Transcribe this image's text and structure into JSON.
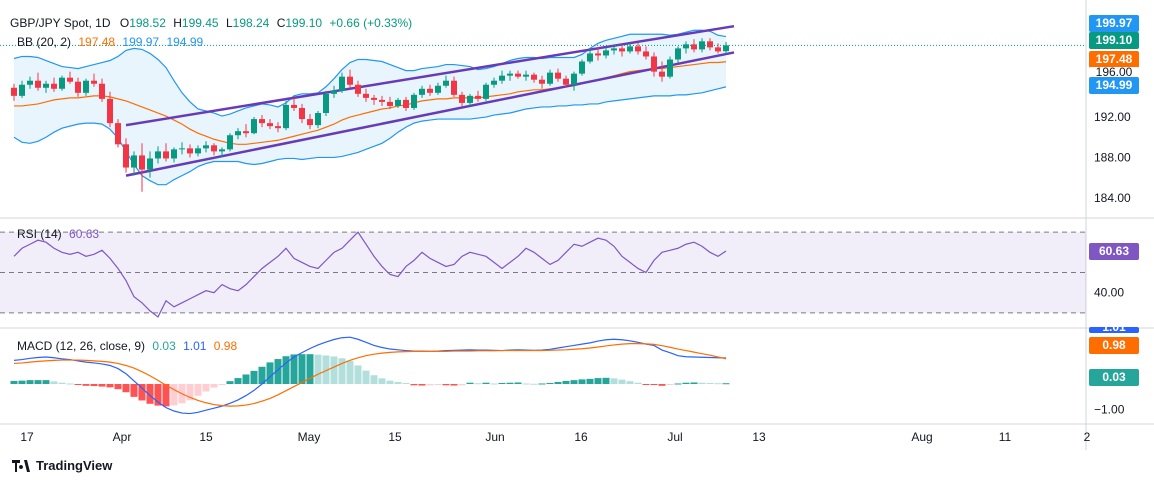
{
  "legend": {
    "symbol": "GBP/JPY Spot, 1D",
    "o_label": "O",
    "o_value": "198.52",
    "h_label": "H",
    "h_value": "199.45",
    "l_label": "L",
    "l_value": "198.24",
    "c_label": "C",
    "c_value": "199.10",
    "change": "+0.66 (+0.33%)",
    "bb_name": "BB (20, 2)",
    "bb_basis": "197.48",
    "bb_upper": "199.97",
    "bb_lower": "194.99",
    "rsi_name": "RSI (14)",
    "rsi_value": "60.63",
    "macd_name": "MACD (12, 26, close, 9)",
    "macd_hist": "0.03",
    "macd_line": "1.01",
    "macd_signal": "0.98"
  },
  "price_tags": {
    "upper": "199.97",
    "close": "199.10",
    "basis": "197.48",
    "partial": "196.00",
    "lower": "194.99",
    "rsi": "60.63",
    "macd_hist": "0.03",
    "macd_signal": "0.98",
    "macd_line": "1.01"
  },
  "colors": {
    "up": "#089981",
    "down": "#f23645",
    "bb_band": "#2196f3",
    "bb_basis": "#ff6d00",
    "bb_fill": "#e3f2fd",
    "channel": "#673ab7",
    "rsi": "#7e57c2",
    "macd_line": "#2962ff",
    "signal": "#ff6d00",
    "close_tag": "#089981"
  },
  "brand": "TradingView",
  "chart_data": [
    {
      "type": "candlestick",
      "title": "GBP/JPY Spot, 1D",
      "y_ticks": [
        184.0,
        188.0,
        192.0,
        196.0
      ],
      "y_tick_labels": [
        "184.00",
        "188.00",
        "192.00",
        "196.00"
      ],
      "ylim": [
        182.3,
        202.8
      ],
      "x_tick_labels": [
        "17",
        "Apr",
        "15",
        "May",
        "15",
        "Jun",
        "16",
        "Jul",
        "13",
        "Aug",
        "11",
        "2"
      ],
      "candles_ohlc": [
        [
          194.9,
          195.3,
          193.6,
          194.1
        ],
        [
          194.1,
          195.6,
          193.9,
          195.2
        ],
        [
          195.2,
          196.0,
          194.8,
          195.6
        ],
        [
          195.6,
          196.4,
          194.6,
          194.9
        ],
        [
          194.9,
          195.6,
          194.4,
          195.3
        ],
        [
          195.3,
          195.9,
          194.5,
          194.8
        ],
        [
          194.8,
          196.1,
          194.6,
          195.9
        ],
        [
          195.9,
          196.5,
          195.3,
          195.5
        ],
        [
          195.5,
          195.9,
          194.0,
          194.4
        ],
        [
          194.4,
          195.8,
          194.1,
          195.6
        ],
        [
          195.6,
          196.3,
          195.0,
          195.3
        ],
        [
          195.3,
          195.8,
          193.5,
          193.8
        ],
        [
          193.8,
          194.5,
          191.0,
          191.4
        ],
        [
          191.4,
          191.8,
          189.0,
          189.3
        ],
        [
          189.3,
          189.9,
          186.5,
          187.0
        ],
        [
          187.0,
          188.6,
          186.2,
          188.2
        ],
        [
          188.2,
          189.4,
          184.6,
          186.8
        ],
        [
          186.8,
          188.6,
          186.0,
          187.9
        ],
        [
          187.9,
          189.1,
          187.4,
          188.6
        ],
        [
          188.6,
          189.4,
          187.6,
          187.9
        ],
        [
          187.9,
          189.0,
          187.5,
          188.8
        ],
        [
          188.8,
          189.5,
          188.3,
          188.9
        ],
        [
          188.9,
          189.3,
          188.0,
          188.4
        ],
        [
          188.4,
          189.2,
          188.1,
          188.9
        ],
        [
          188.9,
          189.6,
          188.5,
          189.2
        ],
        [
          189.2,
          189.4,
          188.2,
          188.6
        ],
        [
          188.6,
          189.0,
          188.0,
          188.8
        ],
        [
          188.8,
          190.4,
          188.6,
          190.2
        ],
        [
          190.2,
          190.9,
          189.8,
          190.6
        ],
        [
          190.6,
          191.3,
          190.0,
          190.4
        ],
        [
          190.4,
          192.0,
          190.3,
          191.8
        ],
        [
          191.8,
          192.2,
          191.0,
          191.4
        ],
        [
          191.4,
          191.8,
          190.8,
          191.1
        ],
        [
          191.1,
          191.5,
          190.5,
          190.9
        ],
        [
          190.9,
          193.6,
          190.7,
          193.2
        ],
        [
          193.2,
          193.9,
          192.6,
          192.9
        ],
        [
          192.9,
          193.3,
          191.4,
          191.8
        ],
        [
          191.8,
          192.3,
          190.8,
          191.2
        ],
        [
          191.2,
          192.6,
          190.9,
          192.4
        ],
        [
          192.4,
          194.6,
          192.1,
          194.3
        ],
        [
          194.3,
          195.1,
          193.9,
          194.6
        ],
        [
          194.6,
          196.4,
          194.4,
          196.0
        ],
        [
          196.0,
          196.7,
          194.8,
          195.2
        ],
        [
          195.2,
          195.6,
          194.0,
          194.3
        ],
        [
          194.3,
          194.8,
          193.5,
          193.9
        ],
        [
          193.9,
          194.2,
          193.2,
          193.7
        ],
        [
          193.7,
          194.1,
          193.1,
          193.5
        ],
        [
          193.5,
          194.0,
          192.8,
          193.1
        ],
        [
          193.1,
          193.9,
          192.9,
          193.7
        ],
        [
          193.7,
          194.0,
          192.6,
          192.9
        ],
        [
          192.9,
          194.4,
          192.7,
          194.2
        ],
        [
          194.2,
          195.1,
          193.9,
          194.8
        ],
        [
          194.8,
          195.2,
          194.1,
          194.4
        ],
        [
          194.4,
          195.4,
          194.2,
          195.1
        ],
        [
          195.1,
          196.1,
          194.9,
          195.6
        ],
        [
          195.6,
          196.0,
          194.0,
          194.2
        ],
        [
          194.2,
          194.5,
          193.0,
          193.4
        ],
        [
          193.4,
          194.3,
          193.1,
          194.1
        ],
        [
          194.1,
          194.6,
          193.5,
          193.8
        ],
        [
          193.8,
          195.4,
          193.6,
          195.2
        ],
        [
          195.2,
          195.9,
          194.9,
          195.6
        ],
        [
          195.6,
          196.6,
          195.3,
          196.1
        ],
        [
          196.1,
          196.6,
          195.6,
          196.3
        ],
        [
          196.3,
          196.6,
          195.8,
          196.0
        ],
        [
          196.0,
          196.6,
          195.6,
          196.2
        ],
        [
          196.2,
          196.4,
          195.4,
          195.7
        ],
        [
          195.7,
          196.1,
          194.8,
          195.3
        ],
        [
          195.3,
          196.7,
          195.1,
          196.4
        ],
        [
          196.4,
          196.8,
          195.5,
          195.8
        ],
        [
          195.8,
          196.1,
          194.9,
          195.2
        ],
        [
          195.2,
          196.5,
          194.6,
          196.3
        ],
        [
          196.3,
          197.7,
          196.1,
          197.5
        ],
        [
          197.5,
          198.8,
          197.3,
          198.3
        ],
        [
          198.3,
          198.9,
          197.6,
          198.1
        ],
        [
          198.1,
          198.9,
          197.8,
          198.6
        ],
        [
          198.6,
          199.0,
          198.2,
          198.8
        ],
        [
          198.8,
          199.2,
          198.0,
          198.5
        ],
        [
          198.5,
          199.3,
          198.3,
          199.0
        ],
        [
          199.0,
          199.4,
          198.2,
          198.5
        ],
        [
          198.5,
          199.0,
          197.7,
          198.0
        ],
        [
          198.0,
          198.4,
          196.0,
          196.5
        ],
        [
          196.5,
          197.5,
          195.5,
          196.0
        ],
        [
          196.0,
          198.0,
          195.8,
          197.7
        ],
        [
          197.7,
          199.0,
          197.4,
          198.8
        ],
        [
          198.8,
          199.5,
          198.3,
          199.2
        ],
        [
          199.2,
          199.7,
          198.4,
          198.7
        ],
        [
          198.7,
          199.8,
          198.4,
          199.5
        ],
        [
          199.5,
          199.8,
          198.6,
          198.9
        ],
        [
          198.9,
          199.3,
          198.3,
          198.5
        ],
        [
          198.52,
          199.45,
          198.24,
          199.1
        ]
      ],
      "bb_upper": [
        197.8,
        198.0,
        198.0,
        197.9,
        197.6,
        197.3,
        197.0,
        196.9,
        196.8,
        197.0,
        197.2,
        197.4,
        197.6,
        198.0,
        198.6,
        198.8,
        198.7,
        198.3,
        197.7,
        196.9,
        195.6,
        194.4,
        193.5,
        192.8,
        192.6,
        192.4,
        192.1,
        192.3,
        192.6,
        192.9,
        193.1,
        193.3,
        193.2,
        193.0,
        193.4,
        194.1,
        194.3,
        194.3,
        194.4,
        195.0,
        195.8,
        196.7,
        197.4,
        197.7,
        197.7,
        197.6,
        197.5,
        197.2,
        196.9,
        196.6,
        196.6,
        196.8,
        196.9,
        197.0,
        197.2,
        197.2,
        197.1,
        197.0,
        196.7,
        196.8,
        197.0,
        197.3,
        197.6,
        197.8,
        197.9,
        197.9,
        197.8,
        197.9,
        197.9,
        197.9,
        197.9,
        198.2,
        198.8,
        199.3,
        199.6,
        199.8,
        200.0,
        200.2,
        200.2,
        200.2,
        200.2,
        200.2,
        200.1,
        200.2,
        200.4,
        200.6,
        200.6,
        200.5,
        200.1,
        199.97
      ],
      "bb_basis": [
        193.1,
        193.1,
        193.2,
        193.3,
        193.5,
        193.7,
        193.8,
        193.9,
        193.9,
        194.0,
        194.1,
        194.1,
        194.0,
        193.8,
        193.6,
        193.3,
        193.0,
        192.7,
        192.4,
        192.1,
        191.7,
        191.3,
        190.8,
        190.4,
        190.1,
        189.8,
        189.6,
        189.4,
        189.3,
        189.3,
        189.4,
        189.5,
        189.6,
        189.7,
        189.9,
        190.1,
        190.3,
        190.5,
        190.7,
        191.0,
        191.3,
        191.7,
        192.0,
        192.2,
        192.4,
        192.6,
        192.8,
        192.9,
        193.1,
        193.2,
        193.4,
        193.6,
        193.7,
        193.8,
        193.8,
        193.9,
        193.9,
        193.9,
        193.9,
        194.0,
        194.1,
        194.2,
        194.3,
        194.5,
        194.6,
        194.7,
        194.7,
        194.8,
        194.9,
        195.0,
        195.1,
        195.3,
        195.5,
        195.7,
        195.9,
        196.1,
        196.3,
        196.5,
        196.6,
        196.7,
        196.8,
        196.8,
        196.9,
        197.0,
        197.1,
        197.2,
        197.3,
        197.4,
        197.4,
        197.48
      ],
      "bb_lower": [
        190.0,
        189.5,
        189.4,
        189.6,
        190.0,
        190.5,
        190.9,
        191.1,
        191.3,
        191.4,
        191.4,
        191.3,
        190.8,
        189.9,
        188.6,
        187.3,
        186.2,
        185.7,
        185.3,
        185.3,
        185.8,
        186.2,
        186.6,
        187.1,
        187.4,
        187.6,
        187.6,
        187.6,
        187.6,
        187.4,
        187.3,
        187.4,
        187.6,
        187.8,
        187.9,
        187.9,
        187.8,
        187.9,
        188.0,
        188.0,
        188.0,
        188.1,
        188.3,
        188.5,
        188.8,
        189.1,
        189.4,
        189.9,
        190.5,
        191.0,
        191.4,
        191.6,
        191.7,
        191.8,
        191.8,
        191.8,
        191.8,
        191.8,
        191.9,
        192.0,
        192.2,
        192.3,
        192.4,
        192.6,
        192.8,
        192.9,
        193.0,
        193.0,
        193.1,
        193.1,
        193.2,
        193.2,
        193.3,
        193.3,
        193.5,
        193.6,
        193.7,
        193.8,
        193.9,
        194.0,
        194.1,
        194.1,
        194.1,
        194.2,
        194.2,
        194.3,
        194.4,
        194.6,
        194.8,
        194.99
      ],
      "channel_upper": [
        [
          14,
          191.2
        ],
        [
          90,
          201.0
        ]
      ],
      "channel_lower": [
        [
          14,
          186.2
        ],
        [
          90,
          198.4
        ]
      ]
    },
    {
      "type": "line",
      "title": "RSI (14)",
      "y_ticks": [
        40.0
      ],
      "y_tick_labels": [
        "40.00"
      ],
      "ylim": [
        24,
        76
      ],
      "bands": [
        70,
        50,
        30
      ],
      "values": [
        58,
        62,
        64,
        66,
        65,
        62,
        60,
        59,
        60,
        58,
        59,
        61,
        57,
        52,
        46,
        38,
        35,
        31,
        28,
        36,
        33,
        35,
        37,
        39,
        41,
        40,
        44,
        42,
        41,
        44,
        48,
        52,
        55,
        58,
        62,
        57,
        55,
        53,
        52,
        56,
        60,
        62,
        66,
        70,
        64,
        58,
        53,
        49,
        48,
        53,
        56,
        60,
        57,
        55,
        53,
        54,
        58,
        60,
        59,
        58,
        55,
        52,
        55,
        58,
        62,
        60,
        57,
        54,
        56,
        60,
        64,
        63,
        65,
        67,
        66,
        63,
        58,
        55,
        52,
        50,
        56,
        60,
        61,
        62,
        64,
        65,
        63,
        60,
        58,
        60.63
      ]
    },
    {
      "type": "line",
      "title": "MACD (12, 26, close, 9)",
      "y_ticks": [
        -1.0
      ],
      "y_tick_labels": [
        "−1.00"
      ],
      "ylim": [
        -1.4,
        2.1
      ],
      "macd": [
        0.92,
        0.95,
        1.0,
        1.03,
        1.05,
        1.02,
        0.98,
        0.95,
        0.9,
        0.85,
        0.82,
        0.78,
        0.72,
        0.6,
        0.4,
        0.12,
        -0.16,
        -0.45,
        -0.7,
        -0.92,
        -1.05,
        -1.13,
        -1.15,
        -1.1,
        -1.02,
        -0.94,
        -0.86,
        -0.75,
        -0.62,
        -0.45,
        -0.25,
        0.0,
        0.28,
        0.55,
        0.82,
        1.05,
        1.22,
        1.38,
        1.52,
        1.63,
        1.73,
        1.8,
        1.82,
        1.74,
        1.62,
        1.5,
        1.42,
        1.36,
        1.33,
        1.3,
        1.28,
        1.28,
        1.27,
        1.28,
        1.3,
        1.31,
        1.32,
        1.33,
        1.32,
        1.32,
        1.31,
        1.3,
        1.32,
        1.33,
        1.32,
        1.31,
        1.32,
        1.35,
        1.4,
        1.45,
        1.5,
        1.55,
        1.6,
        1.67,
        1.72,
        1.74,
        1.72,
        1.68,
        1.62,
        1.55,
        1.5,
        1.32,
        1.22,
        1.1,
        1.06,
        1.05,
        1.04,
        1.03,
        1.02,
        1.01
      ],
      "signal": [
        0.8,
        0.82,
        0.85,
        0.88,
        0.9,
        0.92,
        0.93,
        0.93,
        0.93,
        0.92,
        0.9,
        0.88,
        0.85,
        0.8,
        0.72,
        0.62,
        0.48,
        0.32,
        0.14,
        -0.05,
        -0.22,
        -0.38,
        -0.52,
        -0.64,
        -0.73,
        -0.8,
        -0.84,
        -0.86,
        -0.85,
        -0.82,
        -0.76,
        -0.67,
        -0.56,
        -0.42,
        -0.26,
        -0.1,
        0.06,
        0.22,
        0.38,
        0.52,
        0.66,
        0.8,
        0.92,
        1.02,
        1.1,
        1.16,
        1.2,
        1.23,
        1.25,
        1.26,
        1.27,
        1.27,
        1.27,
        1.27,
        1.27,
        1.28,
        1.28,
        1.28,
        1.29,
        1.29,
        1.29,
        1.3,
        1.3,
        1.3,
        1.3,
        1.3,
        1.3,
        1.31,
        1.32,
        1.33,
        1.35,
        1.37,
        1.4,
        1.44,
        1.48,
        1.52,
        1.55,
        1.57,
        1.57,
        1.56,
        1.54,
        1.49,
        1.43,
        1.36,
        1.3,
        1.24,
        1.18,
        1.12,
        1.05,
        0.98
      ],
      "histogram": [
        0.12,
        0.13,
        0.15,
        0.15,
        0.15,
        0.1,
        0.05,
        0.02,
        -0.03,
        -0.07,
        -0.08,
        -0.1,
        -0.13,
        -0.2,
        -0.32,
        -0.5,
        -0.64,
        -0.77,
        -0.84,
        -0.87,
        -0.83,
        -0.75,
        -0.63,
        -0.46,
        -0.29,
        -0.14,
        -0.02,
        0.11,
        0.23,
        0.37,
        0.51,
        0.67,
        0.84,
        0.97,
        1.08,
        1.15,
        1.16,
        1.16,
        1.14,
        1.11,
        1.07,
        1.0,
        0.9,
        0.72,
        0.52,
        0.34,
        0.22,
        0.13,
        0.08,
        0.04,
        -0.05,
        -0.06,
        -0.05,
        -0.04,
        -0.05,
        -0.06,
        -0.05,
        0.05,
        0.03,
        0.05,
        0.02,
        0.04,
        0.05,
        0.06,
        0.02,
        0.01,
        0.02,
        0.04,
        0.08,
        0.12,
        0.15,
        0.18,
        0.2,
        0.23,
        0.24,
        0.22,
        0.17,
        0.11,
        0.05,
        -0.01,
        -0.04,
        -0.07,
        -0.03,
        0.02,
        0.05,
        0.06,
        0.05,
        0.04,
        0.03,
        0.03
      ]
    }
  ]
}
